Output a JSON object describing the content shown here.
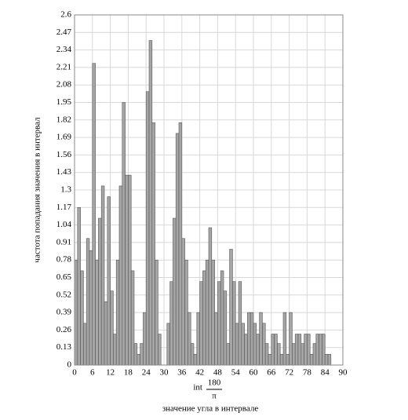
{
  "chart_data": {
    "type": "histogram",
    "y_label": "частота попадания значения в интервал",
    "x_label_prefix": "int",
    "x_label_numerator": "180",
    "x_label_denominator": "π",
    "x_caption": "значение угла в интервале",
    "bins": [
      0,
      1,
      2,
      3,
      4,
      5,
      6,
      7,
      8,
      9,
      10,
      11,
      12,
      13,
      14,
      15,
      16,
      17,
      18,
      19,
      20,
      21,
      22,
      23,
      24,
      25,
      26,
      27,
      28,
      29,
      30,
      31,
      32,
      33,
      34,
      35,
      36,
      37,
      38,
      39,
      40,
      41,
      42,
      43,
      44,
      45,
      46,
      47,
      48,
      49,
      50,
      51,
      52,
      53,
      54,
      55,
      56,
      57,
      58,
      59,
      60,
      61,
      62,
      63,
      64,
      65,
      66,
      67,
      68,
      69,
      70,
      71,
      72,
      73,
      74,
      75,
      76,
      77,
      78,
      79,
      80,
      81,
      82,
      83,
      84,
      85,
      86
    ],
    "counts": [
      0.78,
      1.17,
      0.7,
      0.31,
      0.94,
      0.85,
      2.24,
      0.78,
      1.09,
      1.33,
      0.47,
      1.25,
      0.55,
      0.23,
      0.78,
      1.33,
      1.95,
      1.41,
      1.41,
      0.7,
      0.16,
      0.08,
      0.16,
      0.39,
      2.03,
      2.41,
      1.8,
      0.78,
      0.23,
      0,
      0,
      0.31,
      0.62,
      1.09,
      1.72,
      1.8,
      0.94,
      0.78,
      0.39,
      0.16,
      0.08,
      0.39,
      0.62,
      0.7,
      0.78,
      1.02,
      0.78,
      0.39,
      0.62,
      0.7,
      0.55,
      0.16,
      0.86,
      0.62,
      0.31,
      0.62,
      0.31,
      0.23,
      0.39,
      0.39,
      0.31,
      0.23,
      0.39,
      0.31,
      0.16,
      0.08,
      0.23,
      0.23,
      0.16,
      0.08,
      0.39,
      0.08,
      0.39,
      0.16,
      0.23,
      0.23,
      0.16,
      0.23,
      0.23,
      0.08,
      0.16,
      0.23,
      0.23,
      0.23,
      0.08,
      0.08
    ],
    "color": "#a6a6a6",
    "xlim": [
      0,
      90
    ],
    "xticks": [
      0,
      6,
      12,
      18,
      24,
      30,
      36,
      42,
      48,
      54,
      60,
      66,
      72,
      78,
      84,
      90
    ],
    "ylim": [
      0,
      2.6
    ],
    "yticks": [
      0,
      0.13,
      0.26,
      0.39,
      0.52,
      0.65,
      0.78,
      0.91,
      1.04,
      1.17,
      1.3,
      1.43,
      1.56,
      1.69,
      1.82,
      1.95,
      2.08,
      2.21,
      2.34,
      2.47,
      2.6
    ],
    "grid": true
  }
}
